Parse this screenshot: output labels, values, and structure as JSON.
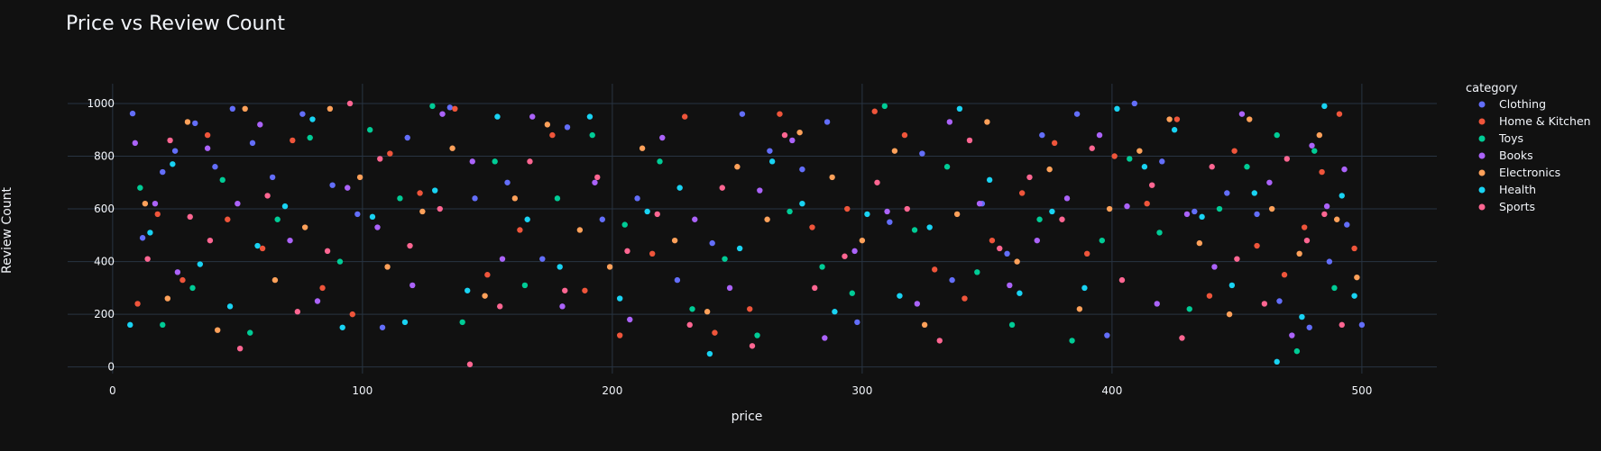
{
  "colors": {
    "background": "#111111",
    "grid": "#283442",
    "zeroline": "#283442",
    "text": "#f2f5fa",
    "series": [
      "#636efa",
      "#EF553B",
      "#00cc96",
      "#ab63fa",
      "#FFA15A",
      "#19d3f3",
      "#FF6692"
    ]
  },
  "chart_data": {
    "type": "scatter",
    "title": "Price vs Review Count",
    "xlabel": "price",
    "ylabel": "Review Count",
    "xlim": [
      -18,
      530
    ],
    "ylim": [
      -25,
      1075
    ],
    "xticks": [
      0,
      100,
      200,
      300,
      400,
      500
    ],
    "yticks": [
      0,
      200,
      400,
      600,
      800,
      1000
    ],
    "grid": true,
    "legend_title": "category",
    "legend_position": "top-right",
    "series": [
      {
        "name": "Clothing",
        "points": [
          [
            8,
            962
          ],
          [
            12,
            490
          ],
          [
            20,
            740
          ],
          [
            25,
            820
          ],
          [
            33,
            925
          ],
          [
            41,
            760
          ],
          [
            48,
            980
          ],
          [
            56,
            850
          ],
          [
            64,
            720
          ],
          [
            76,
            960
          ],
          [
            88,
            690
          ],
          [
            98,
            580
          ],
          [
            108,
            150
          ],
          [
            118,
            870
          ],
          [
            135,
            985
          ],
          [
            145,
            640
          ],
          [
            158,
            700
          ],
          [
            172,
            410
          ],
          [
            182,
            910
          ],
          [
            196,
            560
          ],
          [
            210,
            640
          ],
          [
            226,
            330
          ],
          [
            240,
            470
          ],
          [
            252,
            960
          ],
          [
            263,
            820
          ],
          [
            276,
            750
          ],
          [
            286,
            930
          ],
          [
            298,
            170
          ],
          [
            311,
            550
          ],
          [
            324,
            810
          ],
          [
            336,
            330
          ],
          [
            348,
            620
          ],
          [
            358,
            430
          ],
          [
            372,
            880
          ],
          [
            386,
            960
          ],
          [
            398,
            120
          ],
          [
            409,
            1000
          ],
          [
            420,
            780
          ],
          [
            433,
            590
          ],
          [
            446,
            660
          ],
          [
            458,
            580
          ],
          [
            467,
            250
          ],
          [
            479,
            150
          ],
          [
            487,
            400
          ],
          [
            494,
            540
          ],
          [
            500,
            160
          ]
        ]
      },
      {
        "name": "Home & Kitchen",
        "points": [
          [
            10,
            240
          ],
          [
            18,
            580
          ],
          [
            28,
            330
          ],
          [
            38,
            880
          ],
          [
            46,
            560
          ],
          [
            60,
            450
          ],
          [
            72,
            860
          ],
          [
            84,
            300
          ],
          [
            96,
            200
          ],
          [
            111,
            810
          ],
          [
            123,
            660
          ],
          [
            137,
            980
          ],
          [
            150,
            350
          ],
          [
            163,
            520
          ],
          [
            176,
            880
          ],
          [
            189,
            290
          ],
          [
            203,
            120
          ],
          [
            216,
            430
          ],
          [
            229,
            950
          ],
          [
            241,
            130
          ],
          [
            255,
            220
          ],
          [
            267,
            960
          ],
          [
            280,
            530
          ],
          [
            294,
            600
          ],
          [
            305,
            970
          ],
          [
            317,
            880
          ],
          [
            329,
            370
          ],
          [
            341,
            260
          ],
          [
            352,
            480
          ],
          [
            364,
            660
          ],
          [
            377,
            850
          ],
          [
            390,
            430
          ],
          [
            401,
            800
          ],
          [
            414,
            620
          ],
          [
            426,
            940
          ],
          [
            439,
            270
          ],
          [
            449,
            820
          ],
          [
            458,
            460
          ],
          [
            469,
            350
          ],
          [
            477,
            530
          ],
          [
            484,
            740
          ],
          [
            491,
            960
          ],
          [
            497,
            450
          ]
        ]
      },
      {
        "name": "Toys",
        "points": [
          [
            11,
            680
          ],
          [
            20,
            160
          ],
          [
            32,
            300
          ],
          [
            44,
            710
          ],
          [
            55,
            130
          ],
          [
            66,
            560
          ],
          [
            79,
            870
          ],
          [
            91,
            400
          ],
          [
            103,
            900
          ],
          [
            115,
            640
          ],
          [
            128,
            990
          ],
          [
            140,
            170
          ],
          [
            153,
            780
          ],
          [
            165,
            310
          ],
          [
            178,
            640
          ],
          [
            192,
            880
          ],
          [
            205,
            540
          ],
          [
            219,
            780
          ],
          [
            232,
            220
          ],
          [
            245,
            410
          ],
          [
            258,
            120
          ],
          [
            271,
            590
          ],
          [
            284,
            380
          ],
          [
            296,
            280
          ],
          [
            309,
            990
          ],
          [
            321,
            520
          ],
          [
            334,
            760
          ],
          [
            346,
            360
          ],
          [
            360,
            160
          ],
          [
            371,
            560
          ],
          [
            384,
            100
          ],
          [
            396,
            480
          ],
          [
            407,
            790
          ],
          [
            419,
            510
          ],
          [
            431,
            220
          ],
          [
            443,
            600
          ],
          [
            454,
            760
          ],
          [
            466,
            880
          ],
          [
            474,
            60
          ],
          [
            481,
            820
          ],
          [
            489,
            300
          ]
        ]
      },
      {
        "name": "Books",
        "points": [
          [
            9,
            850
          ],
          [
            17,
            620
          ],
          [
            26,
            360
          ],
          [
            38,
            830
          ],
          [
            50,
            620
          ],
          [
            59,
            920
          ],
          [
            71,
            480
          ],
          [
            82,
            250
          ],
          [
            94,
            680
          ],
          [
            106,
            530
          ],
          [
            120,
            310
          ],
          [
            132,
            960
          ],
          [
            144,
            780
          ],
          [
            156,
            410
          ],
          [
            168,
            950
          ],
          [
            180,
            230
          ],
          [
            193,
            700
          ],
          [
            207,
            180
          ],
          [
            220,
            870
          ],
          [
            233,
            560
          ],
          [
            247,
            300
          ],
          [
            259,
            670
          ],
          [
            272,
            860
          ],
          [
            285,
            110
          ],
          [
            297,
            440
          ],
          [
            310,
            590
          ],
          [
            322,
            240
          ],
          [
            335,
            930
          ],
          [
            347,
            620
          ],
          [
            359,
            310
          ],
          [
            370,
            480
          ],
          [
            382,
            640
          ],
          [
            395,
            880
          ],
          [
            406,
            610
          ],
          [
            418,
            240
          ],
          [
            430,
            580
          ],
          [
            441,
            380
          ],
          [
            452,
            960
          ],
          [
            463,
            700
          ],
          [
            472,
            120
          ],
          [
            480,
            840
          ],
          [
            486,
            610
          ],
          [
            493,
            750
          ]
        ]
      },
      {
        "name": "Electronics",
        "points": [
          [
            13,
            620
          ],
          [
            22,
            260
          ],
          [
            30,
            930
          ],
          [
            42,
            140
          ],
          [
            53,
            980
          ],
          [
            65,
            330
          ],
          [
            77,
            530
          ],
          [
            87,
            980
          ],
          [
            99,
            720
          ],
          [
            110,
            380
          ],
          [
            124,
            590
          ],
          [
            136,
            830
          ],
          [
            149,
            270
          ],
          [
            161,
            640
          ],
          [
            174,
            920
          ],
          [
            187,
            520
          ],
          [
            199,
            380
          ],
          [
            212,
            830
          ],
          [
            225,
            480
          ],
          [
            238,
            210
          ],
          [
            250,
            760
          ],
          [
            262,
            560
          ],
          [
            275,
            890
          ],
          [
            288,
            720
          ],
          [
            300,
            480
          ],
          [
            313,
            820
          ],
          [
            325,
            160
          ],
          [
            338,
            580
          ],
          [
            350,
            930
          ],
          [
            362,
            400
          ],
          [
            375,
            750
          ],
          [
            387,
            220
          ],
          [
            399,
            600
          ],
          [
            411,
            820
          ],
          [
            423,
            940
          ],
          [
            435,
            470
          ],
          [
            447,
            200
          ],
          [
            455,
            940
          ],
          [
            464,
            600
          ],
          [
            475,
            430
          ],
          [
            483,
            880
          ],
          [
            490,
            560
          ],
          [
            498,
            340
          ]
        ]
      },
      {
        "name": "Health",
        "points": [
          [
            7,
            160
          ],
          [
            15,
            510
          ],
          [
            24,
            770
          ],
          [
            35,
            390
          ],
          [
            47,
            230
          ],
          [
            58,
            460
          ],
          [
            69,
            610
          ],
          [
            80,
            940
          ],
          [
            92,
            150
          ],
          [
            104,
            570
          ],
          [
            117,
            170
          ],
          [
            129,
            670
          ],
          [
            142,
            290
          ],
          [
            154,
            950
          ],
          [
            166,
            560
          ],
          [
            179,
            380
          ],
          [
            191,
            950
          ],
          [
            203,
            260
          ],
          [
            214,
            590
          ],
          [
            227,
            680
          ],
          [
            239,
            50
          ],
          [
            251,
            450
          ],
          [
            264,
            780
          ],
          [
            276,
            620
          ],
          [
            289,
            210
          ],
          [
            302,
            580
          ],
          [
            315,
            270
          ],
          [
            327,
            530
          ],
          [
            339,
            980
          ],
          [
            351,
            710
          ],
          [
            363,
            280
          ],
          [
            376,
            590
          ],
          [
            389,
            300
          ],
          [
            402,
            980
          ],
          [
            413,
            760
          ],
          [
            425,
            900
          ],
          [
            436,
            570
          ],
          [
            448,
            310
          ],
          [
            457,
            660
          ],
          [
            466,
            20
          ],
          [
            476,
            190
          ],
          [
            485,
            990
          ],
          [
            492,
            650
          ],
          [
            497,
            270
          ]
        ]
      },
      {
        "name": "Sports",
        "points": [
          [
            14,
            410
          ],
          [
            23,
            860
          ],
          [
            31,
            570
          ],
          [
            39,
            480
          ],
          [
            51,
            70
          ],
          [
            62,
            650
          ],
          [
            74,
            210
          ],
          [
            86,
            440
          ],
          [
            95,
            1000
          ],
          [
            107,
            790
          ],
          [
            119,
            460
          ],
          [
            131,
            600
          ],
          [
            143,
            10
          ],
          [
            155,
            230
          ],
          [
            167,
            780
          ],
          [
            181,
            290
          ],
          [
            194,
            720
          ],
          [
            206,
            440
          ],
          [
            218,
            580
          ],
          [
            231,
            160
          ],
          [
            244,
            680
          ],
          [
            256,
            80
          ],
          [
            269,
            880
          ],
          [
            281,
            300
          ],
          [
            293,
            420
          ],
          [
            306,
            700
          ],
          [
            318,
            600
          ],
          [
            331,
            100
          ],
          [
            343,
            860
          ],
          [
            355,
            450
          ],
          [
            367,
            720
          ],
          [
            380,
            560
          ],
          [
            392,
            830
          ],
          [
            404,
            330
          ],
          [
            416,
            690
          ],
          [
            428,
            110
          ],
          [
            440,
            760
          ],
          [
            450,
            410
          ],
          [
            461,
            240
          ],
          [
            470,
            790
          ],
          [
            478,
            480
          ],
          [
            485,
            580
          ],
          [
            492,
            160
          ]
        ]
      }
    ]
  }
}
